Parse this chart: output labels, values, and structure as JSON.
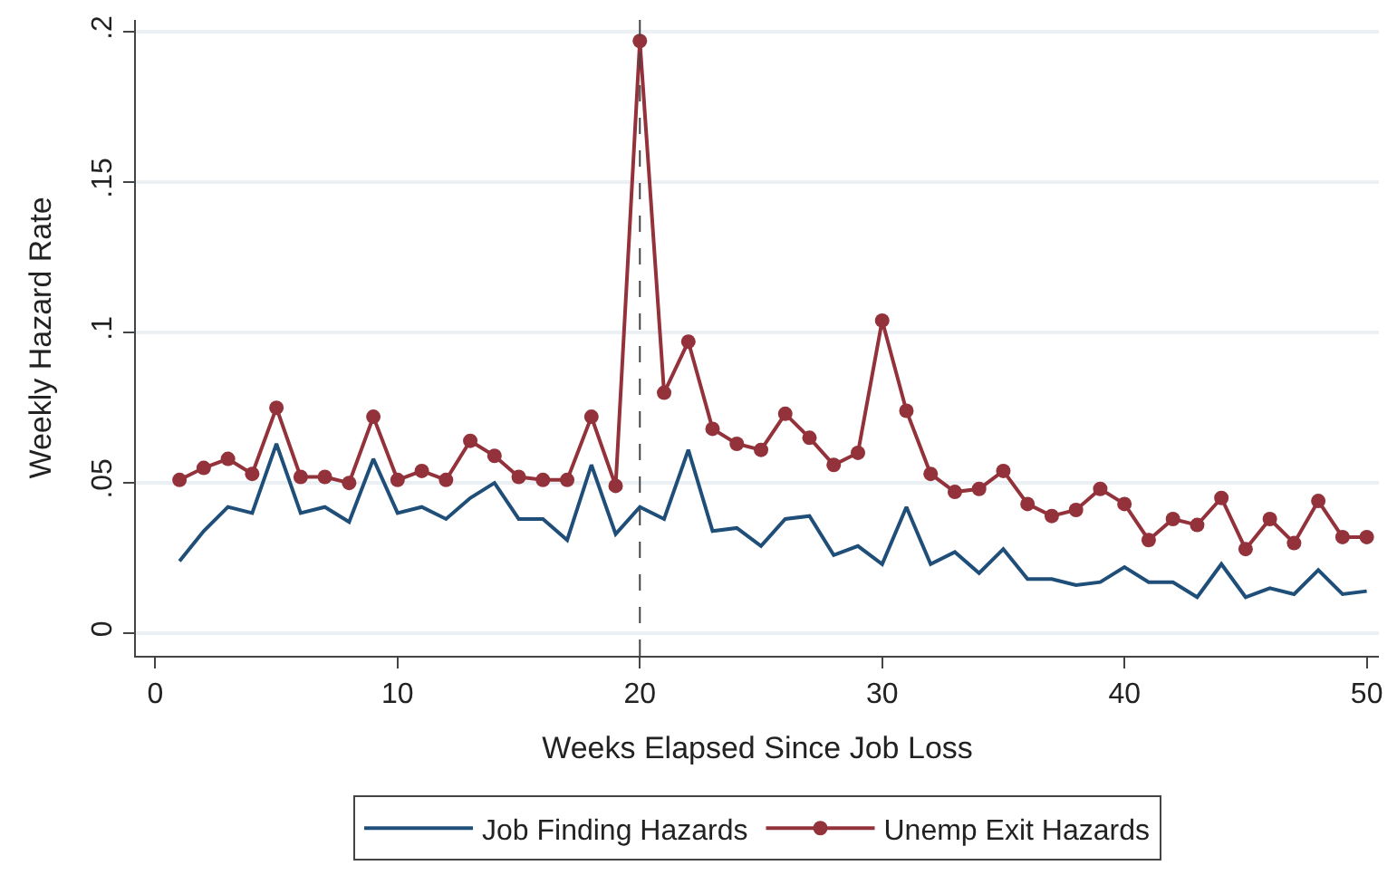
{
  "chart_data": {
    "type": "line",
    "xlabel": "Weeks Elapsed Since Job Loss",
    "ylabel": "Weekly Hazard Rate",
    "x": [
      1,
      2,
      3,
      4,
      5,
      6,
      7,
      8,
      9,
      10,
      11,
      12,
      13,
      14,
      15,
      16,
      17,
      18,
      19,
      20,
      21,
      22,
      23,
      24,
      25,
      26,
      27,
      28,
      29,
      30,
      31,
      32,
      33,
      34,
      35,
      36,
      37,
      38,
      39,
      40,
      41,
      42,
      43,
      44,
      45,
      46,
      47,
      48,
      49,
      50
    ],
    "series": [
      {
        "name": "Job Finding Hazards",
        "color": "#1f4e79",
        "marker": "none",
        "values": [
          0.024,
          0.034,
          0.042,
          0.04,
          0.063,
          0.04,
          0.042,
          0.037,
          0.058,
          0.04,
          0.042,
          0.038,
          0.045,
          0.05,
          0.038,
          0.038,
          0.031,
          0.056,
          0.033,
          0.042,
          0.038,
          0.061,
          0.034,
          0.035,
          0.029,
          0.038,
          0.039,
          0.026,
          0.029,
          0.023,
          0.042,
          0.023,
          0.027,
          0.02,
          0.028,
          0.018,
          0.018,
          0.016,
          0.017,
          0.022,
          0.017,
          0.017,
          0.012,
          0.023,
          0.012,
          0.015,
          0.013,
          0.021,
          0.013,
          0.014
        ]
      },
      {
        "name": "Unemp Exit Hazards",
        "color": "#93323a",
        "marker": "circle",
        "values": [
          0.051,
          0.055,
          0.058,
          0.053,
          0.075,
          0.052,
          0.052,
          0.05,
          0.072,
          0.051,
          0.054,
          0.051,
          0.064,
          0.059,
          0.052,
          0.051,
          0.051,
          0.072,
          0.049,
          0.197,
          0.08,
          0.097,
          0.068,
          0.063,
          0.061,
          0.073,
          0.065,
          0.056,
          0.06,
          0.104,
          0.074,
          0.053,
          0.047,
          0.048,
          0.054,
          0.043,
          0.039,
          0.041,
          0.048,
          0.043,
          0.031,
          0.038,
          0.036,
          0.045,
          0.028,
          0.038,
          0.03,
          0.044,
          0.032,
          0.032
        ]
      }
    ],
    "xlim": [
      -0.8,
      50.5
    ],
    "xticks": [
      0,
      10,
      20,
      30,
      40,
      50
    ],
    "ylim": [
      -0.0075,
      0.204
    ],
    "yticks": [
      {
        "value": 0,
        "label": "0"
      },
      {
        "value": 0.05,
        "label": ".05"
      },
      {
        "value": 0.1,
        "label": ".1"
      },
      {
        "value": 0.15,
        "label": ".15"
      },
      {
        "value": 0.2,
        "label": ".2"
      }
    ],
    "ref_lines": [
      {
        "axis": "x",
        "value": 20,
        "color": "#444444",
        "line_style": "dashed"
      }
    ],
    "grid": "y",
    "legend": "bottom"
  }
}
